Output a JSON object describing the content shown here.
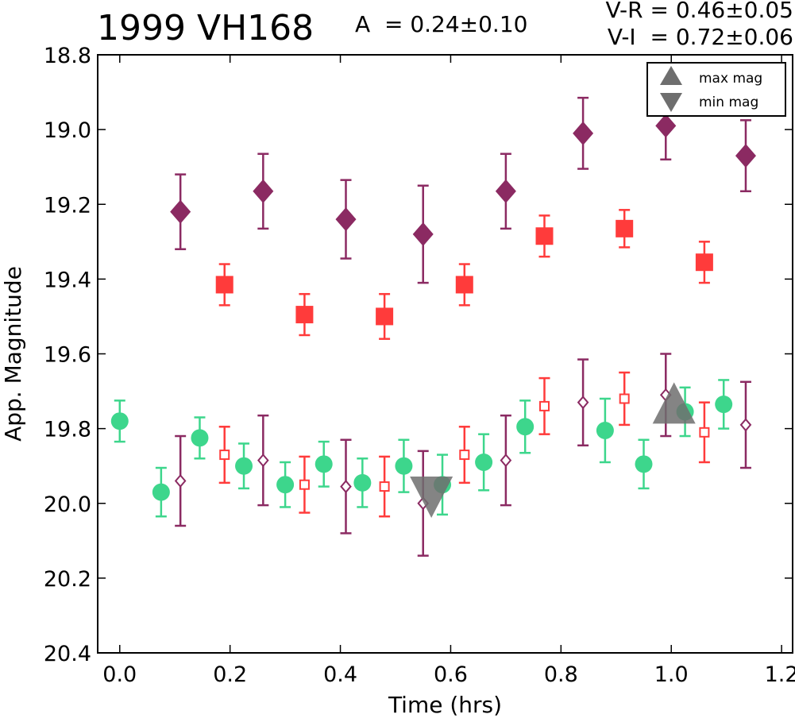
{
  "header": {
    "title": "1999 VH168",
    "amplitude": "A  = 0.24±0.10",
    "v_r": "V-R = 0.46±0.05",
    "v_i": "V-I  = 0.72±0.06"
  },
  "chart_data": {
    "type": "scatter",
    "xlabel": "Time (hrs)",
    "ylabel": "App. Magnitude",
    "xlim": [
      -0.04,
      1.22
    ],
    "ylim": [
      20.4,
      18.8
    ],
    "y_inverted": true,
    "xticks": [
      "0.0",
      "0.2",
      "0.4",
      "0.6",
      "0.8",
      "1.0",
      "1.2"
    ],
    "yticks": [
      "18.8",
      "19.0",
      "19.2",
      "19.4",
      "19.6",
      "19.8",
      "20.0",
      "20.2",
      "20.4"
    ],
    "legend": {
      "position": "top-right",
      "entries": [
        {
          "label": "max mag",
          "marker": "triangle-up",
          "color": "#6e6e6e"
        },
        {
          "label": "min mag",
          "marker": "triangle-down",
          "color": "#6e6e6e"
        }
      ]
    },
    "colors": {
      "V": "#3dd68c",
      "R": "#ff3b3b",
      "I": "#8b2a62",
      "marker_extreme": "#6e6e6e"
    },
    "series": [
      {
        "band": "I",
        "marker": "diamond-filled",
        "points": [
          {
            "x": 0.11,
            "y": 19.22,
            "err": 0.1
          },
          {
            "x": 0.26,
            "y": 19.165,
            "err": 0.1
          },
          {
            "x": 0.41,
            "y": 19.24,
            "err": 0.105
          },
          {
            "x": 0.55,
            "y": 19.28,
            "err": 0.13
          },
          {
            "x": 0.7,
            "y": 19.165,
            "err": 0.1
          },
          {
            "x": 0.84,
            "y": 19.01,
            "err": 0.095
          },
          {
            "x": 0.99,
            "y": 18.99,
            "err": 0.09
          },
          {
            "x": 1.135,
            "y": 19.07,
            "err": 0.095
          }
        ]
      },
      {
        "band": "R",
        "marker": "square-filled",
        "points": [
          {
            "x": 0.19,
            "y": 19.415,
            "err": 0.055
          },
          {
            "x": 0.335,
            "y": 19.495,
            "err": 0.055
          },
          {
            "x": 0.48,
            "y": 19.5,
            "err": 0.06
          },
          {
            "x": 0.625,
            "y": 19.415,
            "err": 0.055
          },
          {
            "x": 0.77,
            "y": 19.285,
            "err": 0.055
          },
          {
            "x": 0.915,
            "y": 19.265,
            "err": 0.05
          },
          {
            "x": 1.06,
            "y": 19.355,
            "err": 0.055
          }
        ]
      },
      {
        "band": "V",
        "marker": "circle-filled",
        "points": [
          {
            "x": 0.0,
            "y": 19.78,
            "err": 0.055
          },
          {
            "x": 0.075,
            "y": 19.97,
            "err": 0.065
          },
          {
            "x": 0.145,
            "y": 19.825,
            "err": 0.055
          },
          {
            "x": 0.225,
            "y": 19.9,
            "err": 0.06
          },
          {
            "x": 0.3,
            "y": 19.95,
            "err": 0.06
          },
          {
            "x": 0.37,
            "y": 19.895,
            "err": 0.06
          },
          {
            "x": 0.44,
            "y": 19.945,
            "err": 0.065
          },
          {
            "x": 0.515,
            "y": 19.9,
            "err": 0.07
          },
          {
            "x": 0.585,
            "y": 19.95,
            "err": 0.08
          },
          {
            "x": 0.66,
            "y": 19.89,
            "err": 0.075
          },
          {
            "x": 0.735,
            "y": 19.795,
            "err": 0.07
          },
          {
            "x": 0.88,
            "y": 19.805,
            "err": 0.085
          },
          {
            "x": 0.95,
            "y": 19.895,
            "err": 0.065
          },
          {
            "x": 1.025,
            "y": 19.755,
            "err": 0.065
          },
          {
            "x": 1.095,
            "y": 19.735,
            "err": 0.065
          }
        ]
      },
      {
        "band": "I",
        "marker": "diamond-open",
        "points": [
          {
            "x": 0.11,
            "y": 19.94,
            "err": 0.12
          },
          {
            "x": 0.26,
            "y": 19.885,
            "err": 0.12
          },
          {
            "x": 0.41,
            "y": 19.955,
            "err": 0.125
          },
          {
            "x": 0.55,
            "y": 20.0,
            "err": 0.14
          },
          {
            "x": 0.7,
            "y": 19.885,
            "err": 0.12
          },
          {
            "x": 0.84,
            "y": 19.73,
            "err": 0.115
          },
          {
            "x": 0.99,
            "y": 19.71,
            "err": 0.11
          },
          {
            "x": 1.135,
            "y": 19.79,
            "err": 0.115
          }
        ]
      },
      {
        "band": "R",
        "marker": "square-open",
        "points": [
          {
            "x": 0.19,
            "y": 19.87,
            "err": 0.075
          },
          {
            "x": 0.335,
            "y": 19.95,
            "err": 0.075
          },
          {
            "x": 0.48,
            "y": 19.955,
            "err": 0.08
          },
          {
            "x": 0.625,
            "y": 19.87,
            "err": 0.075
          },
          {
            "x": 0.77,
            "y": 19.74,
            "err": 0.075
          },
          {
            "x": 0.915,
            "y": 19.72,
            "err": 0.07
          },
          {
            "x": 1.06,
            "y": 19.81,
            "err": 0.08
          }
        ]
      }
    ],
    "extremes": [
      {
        "label": "min mag",
        "x": 0.565,
        "y": 19.975,
        "marker": "triangle-down"
      },
      {
        "label": "max mag",
        "x": 1.005,
        "y": 19.74,
        "marker": "triangle-up"
      }
    ]
  }
}
